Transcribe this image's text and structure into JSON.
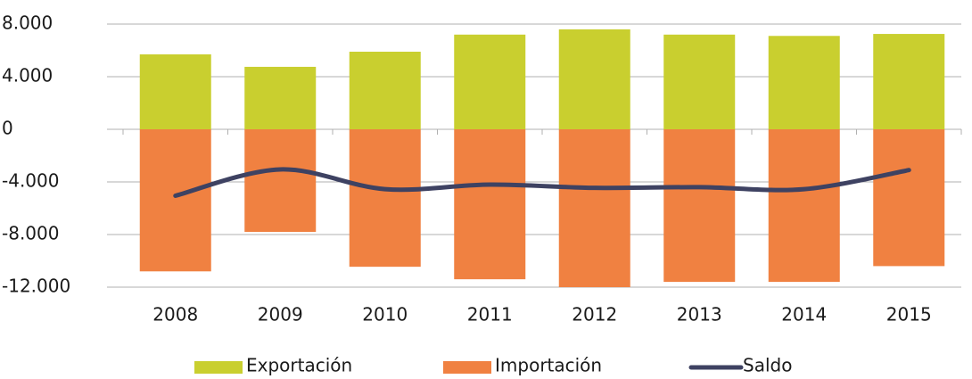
{
  "chart_data": {
    "type": "bar",
    "categories": [
      "2008",
      "2009",
      "2010",
      "2011",
      "2012",
      "2013",
      "2014",
      "2015"
    ],
    "series": [
      {
        "name": "Exportación",
        "color": "#c9cf2f",
        "type": "bar",
        "values": [
          5700,
          4750,
          5900,
          7200,
          7600,
          7200,
          7100,
          7250
        ]
      },
      {
        "name": "Importación",
        "color": "#f08141",
        "type": "bar",
        "values": [
          -10800,
          -7800,
          -10450,
          -11400,
          -12000,
          -11600,
          -11600,
          -10400
        ]
      },
      {
        "name": "Saldo",
        "color": "#3e4262",
        "type": "line",
        "values": [
          -5050,
          -3050,
          -4550,
          -4200,
          -4450,
          -4400,
          -4550,
          -3100
        ]
      }
    ],
    "ylim": [
      -12000,
      8000
    ],
    "yticks": [
      {
        "value": -12000,
        "label": "-12.000"
      },
      {
        "value": -8000,
        "label": "-8.000"
      },
      {
        "value": -4000,
        "label": "-4.000"
      },
      0,
      {
        "value": 4000,
        "label": "4.000"
      },
      {
        "value": 8000,
        "label": "8.000"
      }
    ],
    "grid": true
  }
}
